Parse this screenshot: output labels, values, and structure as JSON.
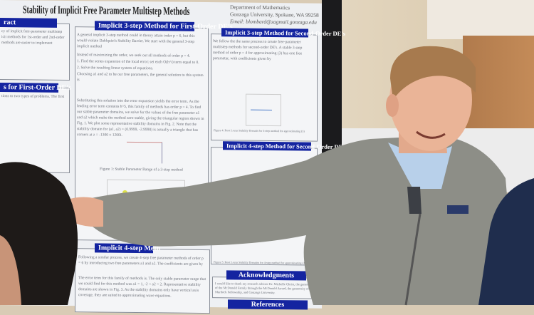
{
  "poster": {
    "title": "Stability of Implicit Free Parameter Multistep Methods",
    "affiliation": [
      "Department of Mathematics",
      "Gonzaga University, Spokane, WA 99258",
      "Email: blombard@zagmail.gonzaga.edu"
    ],
    "sections": {
      "abstract": "ract",
      "first_order_left": "s for First-Order DE's",
      "three_step_first": "Implicit 3-step Method for First-Order DE's",
      "three_step_second": "Implicit 3-step Method for Second-Order DE's",
      "four_step_second": "Implicit 4-step Method for Second-Order DE's",
      "four_step_first": "Implicit 4-step Meth",
      "acknowledgments": "Acknowledgments",
      "references": "References"
    },
    "body_text": {
      "three_step_first": "A general implicit 3-step method could in theory attain order p = 6, but this would violate Dahlquist's Stability Barrier. We start with the general 3-step implicit method",
      "instead": "Instead of maximizing the order, we seek out all methods of order p = 4.",
      "step1": "1. Find the series expansion of the local error; set each O(h^i) term equal to 0.",
      "step2": "2. Solve the resulting linear system of equations.",
      "choosing": "Choosing a1 and a2 to be our free parameters, the general solution to this system is",
      "substituting": "Substituting this solution into the error expansion yields the error term. As the leading error term contains h^5, this family of methods has order p = 4. To find our stable parameter domains, we solve for the values of the free parameter a1 and a2 which make the method zero-stable, giving the triangular region shown in Fig. 1. We plot some representative stability domains in Fig. 2. Note that the stability domain for (a1, a2) = (0.9999, -2.9998) is actually a triangle that has corners at z = -1300 ± 1200i.",
      "second_order": "We follow the the same process to create free-parameter multistep methods for second-order DE's. A stable 3-step method of order p = 4 for approximating (3) has one free parameter, with coefficients given by",
      "abstract": "cy of implicit free-parameter multistep icit methods for 1st-order and 2nd-order methods are easier to implement",
      "first_order_left": "tions to two types of problems. The first",
      "four_step_first": "Following a similar process, we create 4-step free parameter methods of order p = 6 by introducing two free parameters a1 and a2. The coefficients are given by",
      "four_step_error": "The error term for this family of methods is. The only stable parameter range that we could find for this method was a1 = 1, -2 < a2 < 2. Representative stability domains are shown in Fig. 3. As the stability domains only have vertical axis coverage, they are suited to approximating wave equations.",
      "ack": "I would like to thank my research advisor Dr. Michelle Ghrist, the generosity of the McDonald Family through the McDonald Award, the generosity of the Murdock Fellowship, and Gonzaga University."
    },
    "figure_captions": [
      "Figure 1: Stable Parameter Range of a 3-step method",
      "Figure 4: Root Locus Stability Domain for 3-step method for approximating (3)",
      "Figure 5: Root Locus Stability Domains for 4-step method for approximating (3)"
    ]
  },
  "colors": {
    "header_blue": "#1424a0",
    "sweater": "#8e8f87",
    "wall": "#d9cbb5",
    "door": "#b9834f"
  }
}
